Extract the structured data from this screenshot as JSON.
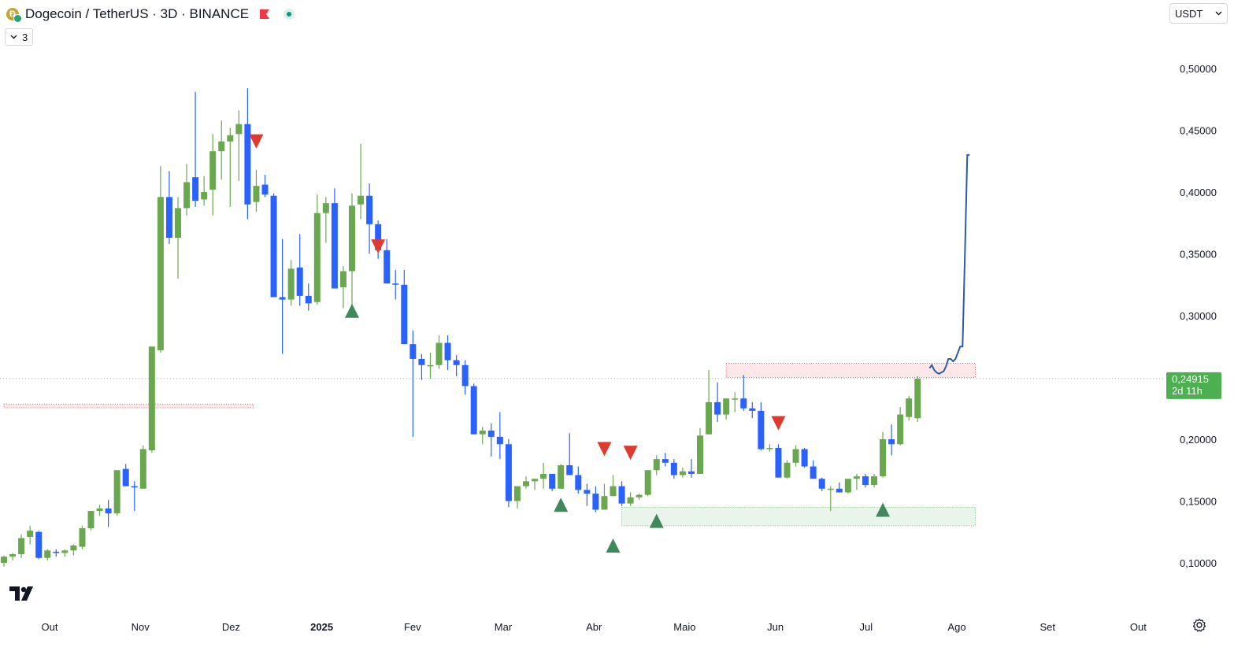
{
  "header": {
    "title": "Dogecoin / TetherUS · 3D · BINANCE",
    "coin_icon": "dogecoin-icon",
    "flag_icon": "flag-icon",
    "status_icon": "live-dot-icon"
  },
  "indicator_toggle": {
    "label": "3",
    "icon": "chevron-down-icon"
  },
  "currency_select": {
    "value": "USDT",
    "icon": "chevron-down-icon"
  },
  "price_label": {
    "price": "0,24915",
    "countdown": "2d 11h",
    "color": "#4caf50"
  },
  "colors": {
    "bull": "#6aa84f",
    "bear": "#2962ff",
    "projection": "#2a5ca8",
    "support": "#4caf50",
    "resistance": "#f23645"
  },
  "chart_data": {
    "type": "candlestick",
    "y_axis_ticks": [
      "0,50000",
      "0,45000",
      "0,40000",
      "0,35000",
      "0,30000",
      "0,20000",
      "0,15000",
      "0,10000"
    ],
    "y_tick_values": [
      0.5,
      0.45,
      0.4,
      0.35,
      0.3,
      0.2,
      0.15,
      0.1
    ],
    "x_axis_ticks": [
      "Out",
      "Nov",
      "Dez",
      "2025",
      "Fev",
      "Mar",
      "Abr",
      "Maio",
      "Jun",
      "Jul",
      "Ago",
      "Set",
      "Out"
    ],
    "ylim": [
      0.0685,
      0.5545
    ],
    "current_price": 0.24915,
    "candles": [
      [
        0.1,
        0.106,
        0.097,
        0.105
      ],
      [
        0.105,
        0.108,
        0.102,
        0.107
      ],
      [
        0.107,
        0.123,
        0.104,
        0.12
      ],
      [
        0.121,
        0.13,
        0.115,
        0.126
      ],
      [
        0.125,
        0.126,
        0.103,
        0.104
      ],
      [
        0.104,
        0.111,
        0.102,
        0.11
      ],
      [
        0.109,
        0.111,
        0.105,
        0.108
      ],
      [
        0.108,
        0.111,
        0.105,
        0.11
      ],
      [
        0.11,
        0.115,
        0.106,
        0.114
      ],
      [
        0.113,
        0.13,
        0.111,
        0.128
      ],
      [
        0.128,
        0.142,
        0.126,
        0.142
      ],
      [
        0.142,
        0.147,
        0.138,
        0.144
      ],
      [
        0.144,
        0.151,
        0.129,
        0.14
      ],
      [
        0.14,
        0.175,
        0.138,
        0.175
      ],
      [
        0.176,
        0.18,
        0.162,
        0.162
      ],
      [
        0.162,
        0.166,
        0.142,
        0.161
      ],
      [
        0.16,
        0.195,
        0.16,
        0.192
      ],
      [
        0.191,
        0.275,
        0.189,
        0.275
      ],
      [
        0.272,
        0.421,
        0.27,
        0.396
      ],
      [
        0.396,
        0.417,
        0.358,
        0.363
      ],
      [
        0.363,
        0.396,
        0.33,
        0.387
      ],
      [
        0.387,
        0.423,
        0.381,
        0.408
      ],
      [
        0.412,
        0.481,
        0.388,
        0.393
      ],
      [
        0.394,
        0.413,
        0.389,
        0.4
      ],
      [
        0.402,
        0.447,
        0.381,
        0.433
      ],
      [
        0.433,
        0.458,
        0.41,
        0.441
      ],
      [
        0.441,
        0.452,
        0.388,
        0.446
      ],
      [
        0.447,
        0.466,
        0.409,
        0.455
      ],
      [
        0.455,
        0.484,
        0.378,
        0.39
      ],
      [
        0.392,
        0.418,
        0.384,
        0.405
      ],
      [
        0.406,
        0.414,
        0.396,
        0.398
      ],
      [
        0.397,
        0.399,
        0.315,
        0.315
      ],
      [
        0.315,
        0.362,
        0.269,
        0.313
      ],
      [
        0.313,
        0.345,
        0.308,
        0.338
      ],
      [
        0.339,
        0.366,
        0.308,
        0.316
      ],
      [
        0.316,
        0.326,
        0.304,
        0.31
      ],
      [
        0.311,
        0.398,
        0.309,
        0.383
      ],
      [
        0.383,
        0.396,
        0.359,
        0.391
      ],
      [
        0.391,
        0.403,
        0.322,
        0.322
      ],
      [
        0.323,
        0.34,
        0.306,
        0.336
      ],
      [
        0.336,
        0.399,
        0.306,
        0.389
      ],
      [
        0.39,
        0.439,
        0.378,
        0.397
      ],
      [
        0.397,
        0.407,
        0.35,
        0.374
      ],
      [
        0.374,
        0.377,
        0.346,
        0.353
      ],
      [
        0.353,
        0.362,
        0.327,
        0.326
      ],
      [
        0.326,
        0.337,
        0.313,
        0.325
      ],
      [
        0.325,
        0.337,
        0.28,
        0.277
      ],
      [
        0.277,
        0.288,
        0.202,
        0.265
      ],
      [
        0.265,
        0.269,
        0.248,
        0.26
      ],
      [
        0.259,
        0.27,
        0.249,
        0.26
      ],
      [
        0.26,
        0.284,
        0.257,
        0.278
      ],
      [
        0.278,
        0.284,
        0.256,
        0.264
      ],
      [
        0.264,
        0.268,
        0.251,
        0.26
      ],
      [
        0.26,
        0.264,
        0.236,
        0.243
      ],
      [
        0.243,
        0.245,
        0.204,
        0.204
      ],
      [
        0.204,
        0.21,
        0.196,
        0.207
      ],
      [
        0.207,
        0.213,
        0.186,
        0.202
      ],
      [
        0.202,
        0.222,
        0.184,
        0.196
      ],
      [
        0.196,
        0.2,
        0.145,
        0.15
      ],
      [
        0.15,
        0.162,
        0.144,
        0.162
      ],
      [
        0.162,
        0.17,
        0.16,
        0.166
      ],
      [
        0.166,
        0.168,
        0.159,
        0.168
      ],
      [
        0.168,
        0.181,
        0.16,
        0.172
      ],
      [
        0.172,
        0.171,
        0.158,
        0.16
      ],
      [
        0.16,
        0.18,
        0.16,
        0.179
      ],
      [
        0.179,
        0.205,
        0.171,
        0.171
      ],
      [
        0.171,
        0.178,
        0.156,
        0.159
      ],
      [
        0.159,
        0.164,
        0.146,
        0.156
      ],
      [
        0.156,
        0.162,
        0.141,
        0.143
      ],
      [
        0.143,
        0.164,
        0.143,
        0.154
      ],
      [
        0.154,
        0.171,
        0.154,
        0.162
      ],
      [
        0.162,
        0.166,
        0.146,
        0.148
      ],
      [
        0.148,
        0.157,
        0.146,
        0.153
      ],
      [
        0.153,
        0.156,
        0.151,
        0.155
      ],
      [
        0.155,
        0.175,
        0.154,
        0.175
      ],
      [
        0.175,
        0.187,
        0.171,
        0.184
      ],
      [
        0.184,
        0.189,
        0.178,
        0.181
      ],
      [
        0.181,
        0.184,
        0.168,
        0.171
      ],
      [
        0.171,
        0.177,
        0.169,
        0.174
      ],
      [
        0.174,
        0.184,
        0.169,
        0.172
      ],
      [
        0.172,
        0.209,
        0.172,
        0.203
      ],
      [
        0.204,
        0.256,
        0.204,
        0.23
      ],
      [
        0.23,
        0.246,
        0.214,
        0.22
      ],
      [
        0.22,
        0.233,
        0.216,
        0.233
      ],
      [
        0.233,
        0.238,
        0.222,
        0.233
      ],
      [
        0.233,
        0.252,
        0.223,
        0.225
      ],
      [
        0.225,
        0.23,
        0.217,
        0.223
      ],
      [
        0.223,
        0.23,
        0.191,
        0.192
      ],
      [
        0.192,
        0.196,
        0.19,
        0.193
      ],
      [
        0.193,
        0.196,
        0.171,
        0.169
      ],
      [
        0.169,
        0.183,
        0.168,
        0.181
      ],
      [
        0.181,
        0.195,
        0.178,
        0.192
      ],
      [
        0.192,
        0.193,
        0.177,
        0.178
      ],
      [
        0.178,
        0.183,
        0.169,
        0.168
      ],
      [
        0.168,
        0.169,
        0.158,
        0.16
      ],
      [
        0.16,
        0.162,
        0.142,
        0.16
      ],
      [
        0.16,
        0.165,
        0.157,
        0.157
      ],
      [
        0.157,
        0.166,
        0.156,
        0.168
      ],
      [
        0.168,
        0.172,
        0.159,
        0.17
      ],
      [
        0.17,
        0.172,
        0.161,
        0.163
      ],
      [
        0.163,
        0.172,
        0.161,
        0.17
      ],
      [
        0.17,
        0.206,
        0.169,
        0.2
      ],
      [
        0.2,
        0.212,
        0.187,
        0.196
      ],
      [
        0.196,
        0.226,
        0.195,
        0.22
      ],
      [
        0.218,
        0.235,
        0.215,
        0.233
      ],
      [
        0.217,
        0.251,
        0.214,
        0.249
      ]
    ],
    "markers": [
      {
        "direction": "down",
        "index": 29,
        "price": 0.441
      },
      {
        "direction": "up",
        "index": 40,
        "price": 0.304
      },
      {
        "direction": "down",
        "index": 43,
        "price": 0.356
      },
      {
        "direction": "up",
        "index": 64,
        "price": 0.147
      },
      {
        "direction": "down",
        "index": 69,
        "price": 0.192
      },
      {
        "direction": "down",
        "index": 72,
        "price": 0.189
      },
      {
        "direction": "up",
        "index": 70,
        "price": 0.114
      },
      {
        "direction": "up",
        "index": 75,
        "price": 0.134
      },
      {
        "direction": "down",
        "index": 89,
        "price": 0.213
      },
      {
        "direction": "up",
        "index": 101,
        "price": 0.143
      }
    ],
    "zones": [
      {
        "kind": "resistance",
        "from_index": 83,
        "to_index": 112,
        "low": 0.25,
        "high": 0.2615
      },
      {
        "kind": "support",
        "from_index": 71,
        "to_index": 112,
        "low": 0.13,
        "high": 0.145
      },
      {
        "kind": "resistance-old",
        "from_index": 0,
        "to_index": 29,
        "low": 0.2255,
        "high": 0.2285
      }
    ],
    "projection": [
      [
        0.2575,
        0.26
      ],
      [
        0.256,
        0.254
      ],
      [
        0.253,
        0.254
      ],
      [
        0.255,
        0.259
      ],
      [
        0.265,
        0.265
      ],
      [
        0.263,
        0.265
      ],
      [
        0.27,
        0.275
      ],
      [
        0.275,
        0.35
      ],
      [
        0.43,
        0.43
      ]
    ]
  }
}
